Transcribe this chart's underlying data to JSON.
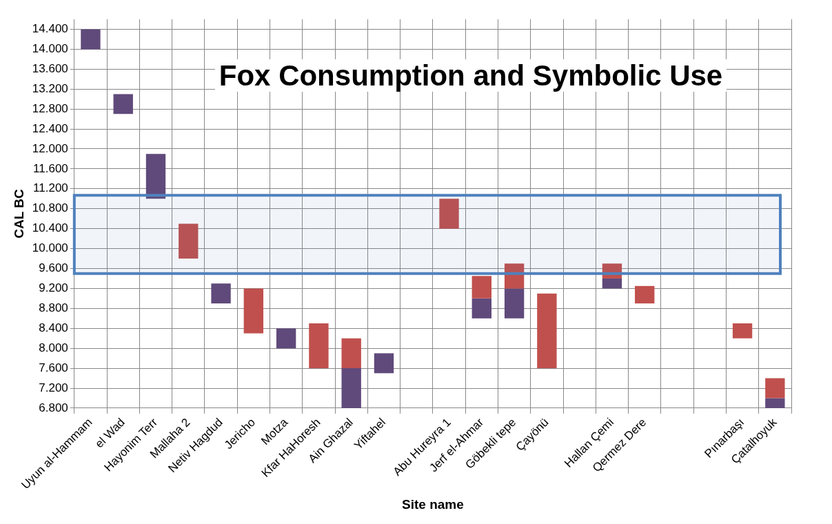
{
  "chart_data": {
    "type": "bar",
    "title": "Fox Consumption and Symbolic Use",
    "xlabel": "Site name",
    "ylabel": "CAL BC",
    "categories": [
      "Uyun al-Hammam",
      "el Wad",
      "Hayonim Terr",
      "Mallaha 2",
      "Netiv Hagdud",
      "Jericho",
      "Motza",
      "Kfar HaHoresh",
      "Ain Ghazal",
      "Yiftahel",
      null,
      "Abu Hureyra 1",
      "Jerf el-Ahmar",
      "Göbekli tepe",
      "Çayönü",
      null,
      "Hallan Çemi",
      "Qermez Dere",
      null,
      null,
      "Pınarbaşı",
      "Çatalhoyuk"
    ],
    "series": [
      {
        "color": "#c0504d",
        "base": [
          null,
          null,
          null,
          9800,
          null,
          8300,
          null,
          7600,
          7600,
          null,
          null,
          10400,
          9000,
          9200,
          7600,
          null,
          9400,
          8900,
          null,
          null,
          8200,
          7000
        ],
        "values": [
          null,
          null,
          null,
          700,
          null,
          900,
          null,
          900,
          600,
          null,
          null,
          600,
          450,
          500,
          1500,
          null,
          300,
          350,
          null,
          null,
          300,
          400
        ]
      },
      {
        "color": "#604a7b",
        "base": [
          14000,
          12700,
          11000,
          null,
          8900,
          null,
          8000,
          null,
          6800,
          7500,
          null,
          null,
          8600,
          8600,
          null,
          null,
          9200,
          null,
          null,
          null,
          null,
          6800
        ],
        "values": [
          400,
          400,
          900,
          null,
          400,
          null,
          400,
          null,
          800,
          400,
          null,
          null,
          400,
          600,
          null,
          null,
          200,
          null,
          null,
          null,
          null,
          200
        ]
      }
    ],
    "ylim": [
      6800,
      14600
    ],
    "yticks": [
      {
        "value": 6800,
        "label": "6.800"
      },
      {
        "value": 7200,
        "label": "7.200"
      },
      {
        "value": 7600,
        "label": "7.600"
      },
      {
        "value": 8000,
        "label": "8.000"
      },
      {
        "value": 8400,
        "label": "8.400"
      },
      {
        "value": 8800,
        "label": "8.800"
      },
      {
        "value": 9200,
        "label": "9.200"
      },
      {
        "value": 9600,
        "label": "9.600"
      },
      {
        "value": 10000,
        "label": "10.000"
      },
      {
        "value": 10400,
        "label": "10.400"
      },
      {
        "value": 10800,
        "label": "10.800"
      },
      {
        "value": 11200,
        "label": "11.200"
      },
      {
        "value": 11600,
        "label": "11.600"
      },
      {
        "value": 12000,
        "label": "12.000"
      },
      {
        "value": 12400,
        "label": "12.400"
      },
      {
        "value": 12800,
        "label": "12.800"
      },
      {
        "value": 13200,
        "label": "13.200"
      },
      {
        "value": 13600,
        "label": "13.600"
      },
      {
        "value": 14000,
        "label": "14.000"
      },
      {
        "value": 14400,
        "label": "14.400"
      }
    ],
    "bands": [
      {
        "axis": "y",
        "from": 9500,
        "to": 11070,
        "color": "#4f81bd"
      }
    ],
    "grid": true,
    "legend": false
  }
}
